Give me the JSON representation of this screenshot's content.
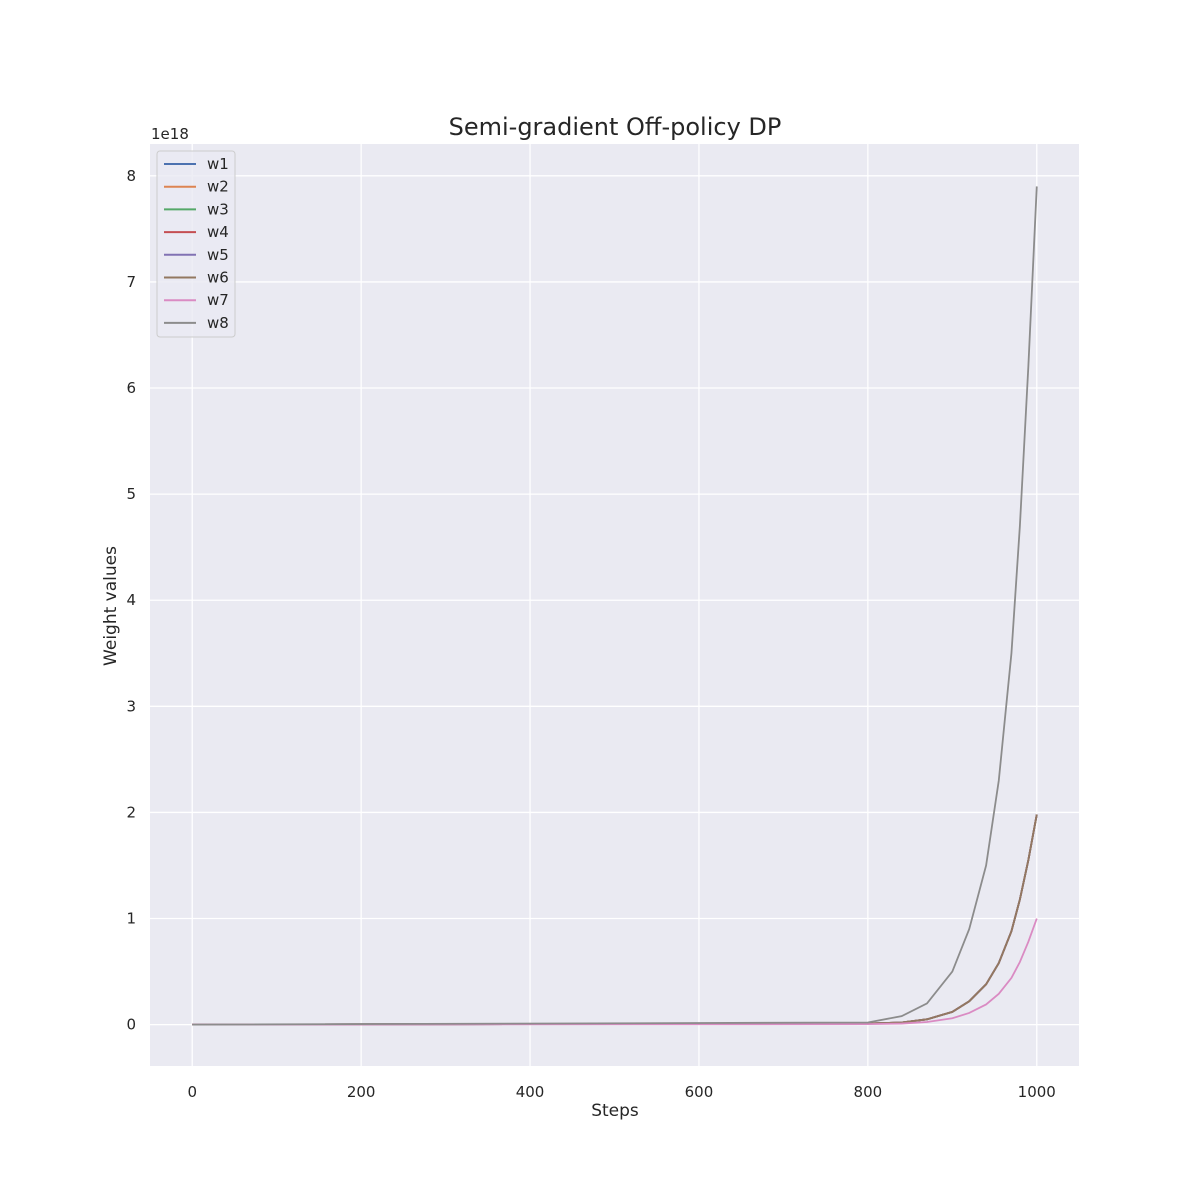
{
  "chart_data": {
    "type": "line",
    "title": "Semi-gradient Off-policy DP",
    "xlabel": "Steps",
    "ylabel": "Weight values",
    "y_scale_label": "1e18",
    "y_scale": 1e+18,
    "xlim": [
      -50,
      1050
    ],
    "ylim": [
      -0.39,
      8.3
    ],
    "xticks": [
      0,
      200,
      400,
      600,
      800,
      1000
    ],
    "xtick_labels": [
      "0",
      "200",
      "400",
      "600",
      "800",
      "1000"
    ],
    "yticks": [
      0,
      1,
      2,
      3,
      4,
      5,
      6,
      7,
      8
    ],
    "ytick_labels": [
      "0",
      "1",
      "2",
      "3",
      "4",
      "5",
      "6",
      "7",
      "8"
    ],
    "grid": true,
    "legend_position": "top-left",
    "x": [
      0,
      800,
      840,
      870,
      900,
      920,
      940,
      955,
      970,
      980,
      990,
      1000
    ],
    "series": [
      {
        "name": "w1",
        "color": "#4c72b0",
        "values": [
          0.0,
          0.01,
          0.02,
          0.05,
          0.12,
          0.22,
          0.38,
          0.58,
          0.88,
          1.18,
          1.55,
          1.98
        ]
      },
      {
        "name": "w2",
        "color": "#dd8452",
        "values": [
          0.0,
          0.01,
          0.02,
          0.05,
          0.12,
          0.22,
          0.38,
          0.58,
          0.88,
          1.18,
          1.55,
          1.98
        ]
      },
      {
        "name": "w3",
        "color": "#55a868",
        "values": [
          0.0,
          0.01,
          0.02,
          0.05,
          0.12,
          0.22,
          0.38,
          0.58,
          0.88,
          1.18,
          1.55,
          1.98
        ]
      },
      {
        "name": "w4",
        "color": "#c44e52",
        "values": [
          0.0,
          0.01,
          0.02,
          0.05,
          0.12,
          0.22,
          0.38,
          0.58,
          0.88,
          1.18,
          1.55,
          1.98
        ]
      },
      {
        "name": "w5",
        "color": "#8172b3",
        "values": [
          0.0,
          0.01,
          0.02,
          0.05,
          0.12,
          0.22,
          0.38,
          0.58,
          0.88,
          1.18,
          1.55,
          1.98
        ]
      },
      {
        "name": "w6",
        "color": "#937860",
        "values": [
          0.0,
          0.01,
          0.02,
          0.05,
          0.12,
          0.22,
          0.38,
          0.58,
          0.88,
          1.18,
          1.55,
          1.98
        ]
      },
      {
        "name": "w7",
        "color": "#da8bc3",
        "values": [
          0.0,
          0.005,
          0.01,
          0.025,
          0.06,
          0.11,
          0.19,
          0.29,
          0.44,
          0.59,
          0.78,
          1.0
        ]
      },
      {
        "name": "w8",
        "color": "#8c8c8c",
        "values": [
          0.0,
          0.02,
          0.08,
          0.2,
          0.5,
          0.9,
          1.5,
          2.3,
          3.5,
          4.7,
          6.2,
          7.9
        ]
      }
    ]
  }
}
